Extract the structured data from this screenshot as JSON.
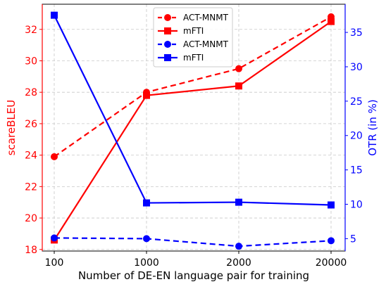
{
  "chart_data": {
    "type": "line",
    "xlabel": "Number of DE-EN language pair for training",
    "categories": [
      "100",
      "1000",
      "2000",
      "20000"
    ],
    "left_axis": {
      "label": "scareBLEU",
      "color": "#ff0000",
      "ylim": [
        17.9,
        33.6
      ],
      "ticks": [
        18,
        20,
        22,
        24,
        26,
        28,
        30,
        32
      ]
    },
    "right_axis": {
      "label": "OTR (in %)",
      "color": "#0000ff",
      "ylim": [
        3.2,
        39.1
      ],
      "ticks": [
        5,
        10,
        15,
        20,
        25,
        30,
        35
      ]
    },
    "grid": true,
    "legend_position": "upper-center",
    "series": [
      {
        "name": "ACT-MNMT",
        "axis": "left",
        "color": "#ff0000",
        "marker": "circle",
        "linestyle": "dashed",
        "values": [
          23.9,
          28.0,
          29.5,
          32.8
        ]
      },
      {
        "name": "mFTI",
        "axis": "left",
        "color": "#ff0000",
        "marker": "square",
        "linestyle": "solid",
        "values": [
          18.6,
          27.8,
          28.4,
          32.5
        ]
      },
      {
        "name": "ACT-MNMT",
        "axis": "right",
        "color": "#0000ff",
        "marker": "circle",
        "linestyle": "dashed",
        "values": [
          5.1,
          5.0,
          3.9,
          4.7
        ]
      },
      {
        "name": "mFTI",
        "axis": "right",
        "color": "#0000ff",
        "marker": "square",
        "linestyle": "solid",
        "values": [
          37.5,
          10.2,
          10.3,
          9.9
        ]
      }
    ]
  }
}
